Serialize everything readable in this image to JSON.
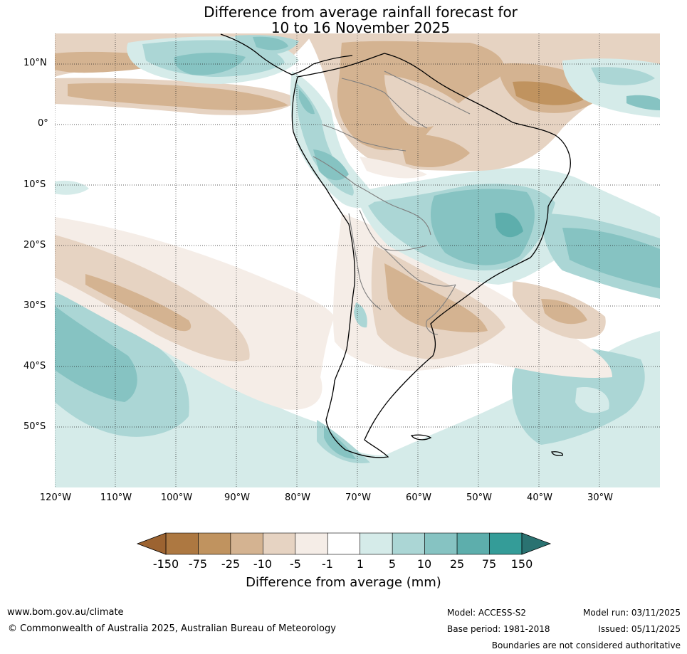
{
  "title": {
    "line1": "Difference from average rainfall forecast for",
    "line2": "10 to 16 November 2025"
  },
  "map": {
    "lat_labels": [
      "10°N",
      "0°",
      "10°S",
      "20°S",
      "30°S",
      "40°S",
      "50°S"
    ],
    "lon_labels": [
      "120°W",
      "110°W",
      "100°W",
      "90°W",
      "80°W",
      "70°W",
      "60°W",
      "50°W",
      "40°W",
      "30°W"
    ],
    "extent": {
      "lon_min": -120,
      "lon_max": -20,
      "lat_min": -60,
      "lat_max": 15
    }
  },
  "colorbar": {
    "title": "Difference from average (mm)",
    "ticks": [
      "-150",
      "-75",
      "-25",
      "-10",
      "-5",
      "-1",
      "1",
      "5",
      "10",
      "25",
      "75",
      "150"
    ],
    "under_color": "#9c6331",
    "over_color": "#2a7271",
    "bin_colors": [
      "#ad7841",
      "#c0935f",
      "#d4b391",
      "#e6d3c2",
      "#f5ede7",
      "#ffffff",
      "#d5ebe9",
      "#abd6d5",
      "#86c3c2",
      "#5daeac",
      "#349c98"
    ]
  },
  "footer": {
    "website": "www.bom.gov.au/climate",
    "copyright": "© Commonwealth of Australia 2025, Australian Bureau of Meteorology",
    "model": "Model: ACCESS-S2",
    "base_period": "Base period: 1981-2018",
    "model_run": "Model run: 03/11/2025",
    "issued": "Issued: 05/11/2025",
    "disclaimer": "Boundaries are not considered authoritative"
  }
}
